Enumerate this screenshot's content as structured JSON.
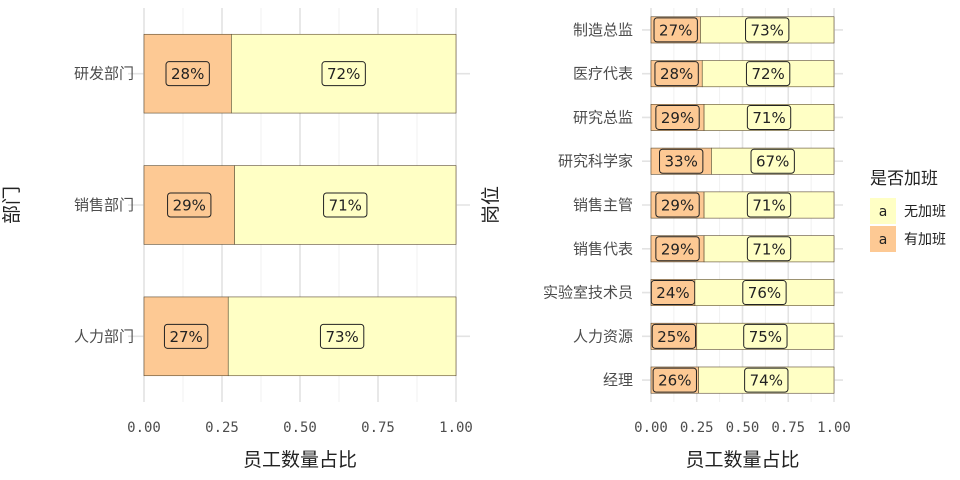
{
  "chart_data": [
    {
      "type": "bar",
      "orientation": "horizontal",
      "stacked": true,
      "normalized": true,
      "xlabel": "员工数量占比",
      "ylabel": "部门",
      "xlim": [
        0,
        1
      ],
      "x_ticks": [
        "0.00",
        "0.25",
        "0.50",
        "0.75",
        "1.00"
      ],
      "categories": [
        "研发部门",
        "销售部门",
        "人力部门"
      ],
      "series": [
        {
          "name": "有加班",
          "color": "#fdc994",
          "values": [
            0.28,
            0.29,
            0.27
          ],
          "labels": [
            "28%",
            "29%",
            "27%"
          ]
        },
        {
          "name": "无加班",
          "color": "#ffffc5",
          "values": [
            0.72,
            0.71,
            0.73
          ],
          "labels": [
            "72%",
            "71%",
            "73%"
          ]
        }
      ]
    },
    {
      "type": "bar",
      "orientation": "horizontal",
      "stacked": true,
      "normalized": true,
      "xlabel": "员工数量占比",
      "ylabel": "岗位",
      "xlim": [
        0,
        1
      ],
      "x_ticks": [
        "0.00",
        "0.25",
        "0.50",
        "0.75",
        "1.00"
      ],
      "categories": [
        "制造总监",
        "医疗代表",
        "研究总监",
        "研究科学家",
        "销售主管",
        "销售代表",
        "实验室技术员",
        "人力资源",
        "经理"
      ],
      "series": [
        {
          "name": "有加班",
          "color": "#fdc994",
          "values": [
            0.27,
            0.28,
            0.29,
            0.33,
            0.29,
            0.29,
            0.24,
            0.25,
            0.26
          ],
          "labels": [
            "27%",
            "28%",
            "29%",
            "33%",
            "29%",
            "29%",
            "24%",
            "25%",
            "26%"
          ]
        },
        {
          "name": "无加班",
          "color": "#ffffc5",
          "values": [
            0.73,
            0.72,
            0.71,
            0.67,
            0.71,
            0.71,
            0.76,
            0.75,
            0.74
          ],
          "labels": [
            "73%",
            "72%",
            "71%",
            "67%",
            "71%",
            "71%",
            "76%",
            "75%",
            "74%"
          ]
        }
      ]
    }
  ],
  "legend": {
    "title": "是否加班",
    "key_glyph": "a",
    "items": [
      {
        "label": "无加班",
        "color": "#ffffc5"
      },
      {
        "label": "有加班",
        "color": "#fdc994"
      }
    ]
  }
}
